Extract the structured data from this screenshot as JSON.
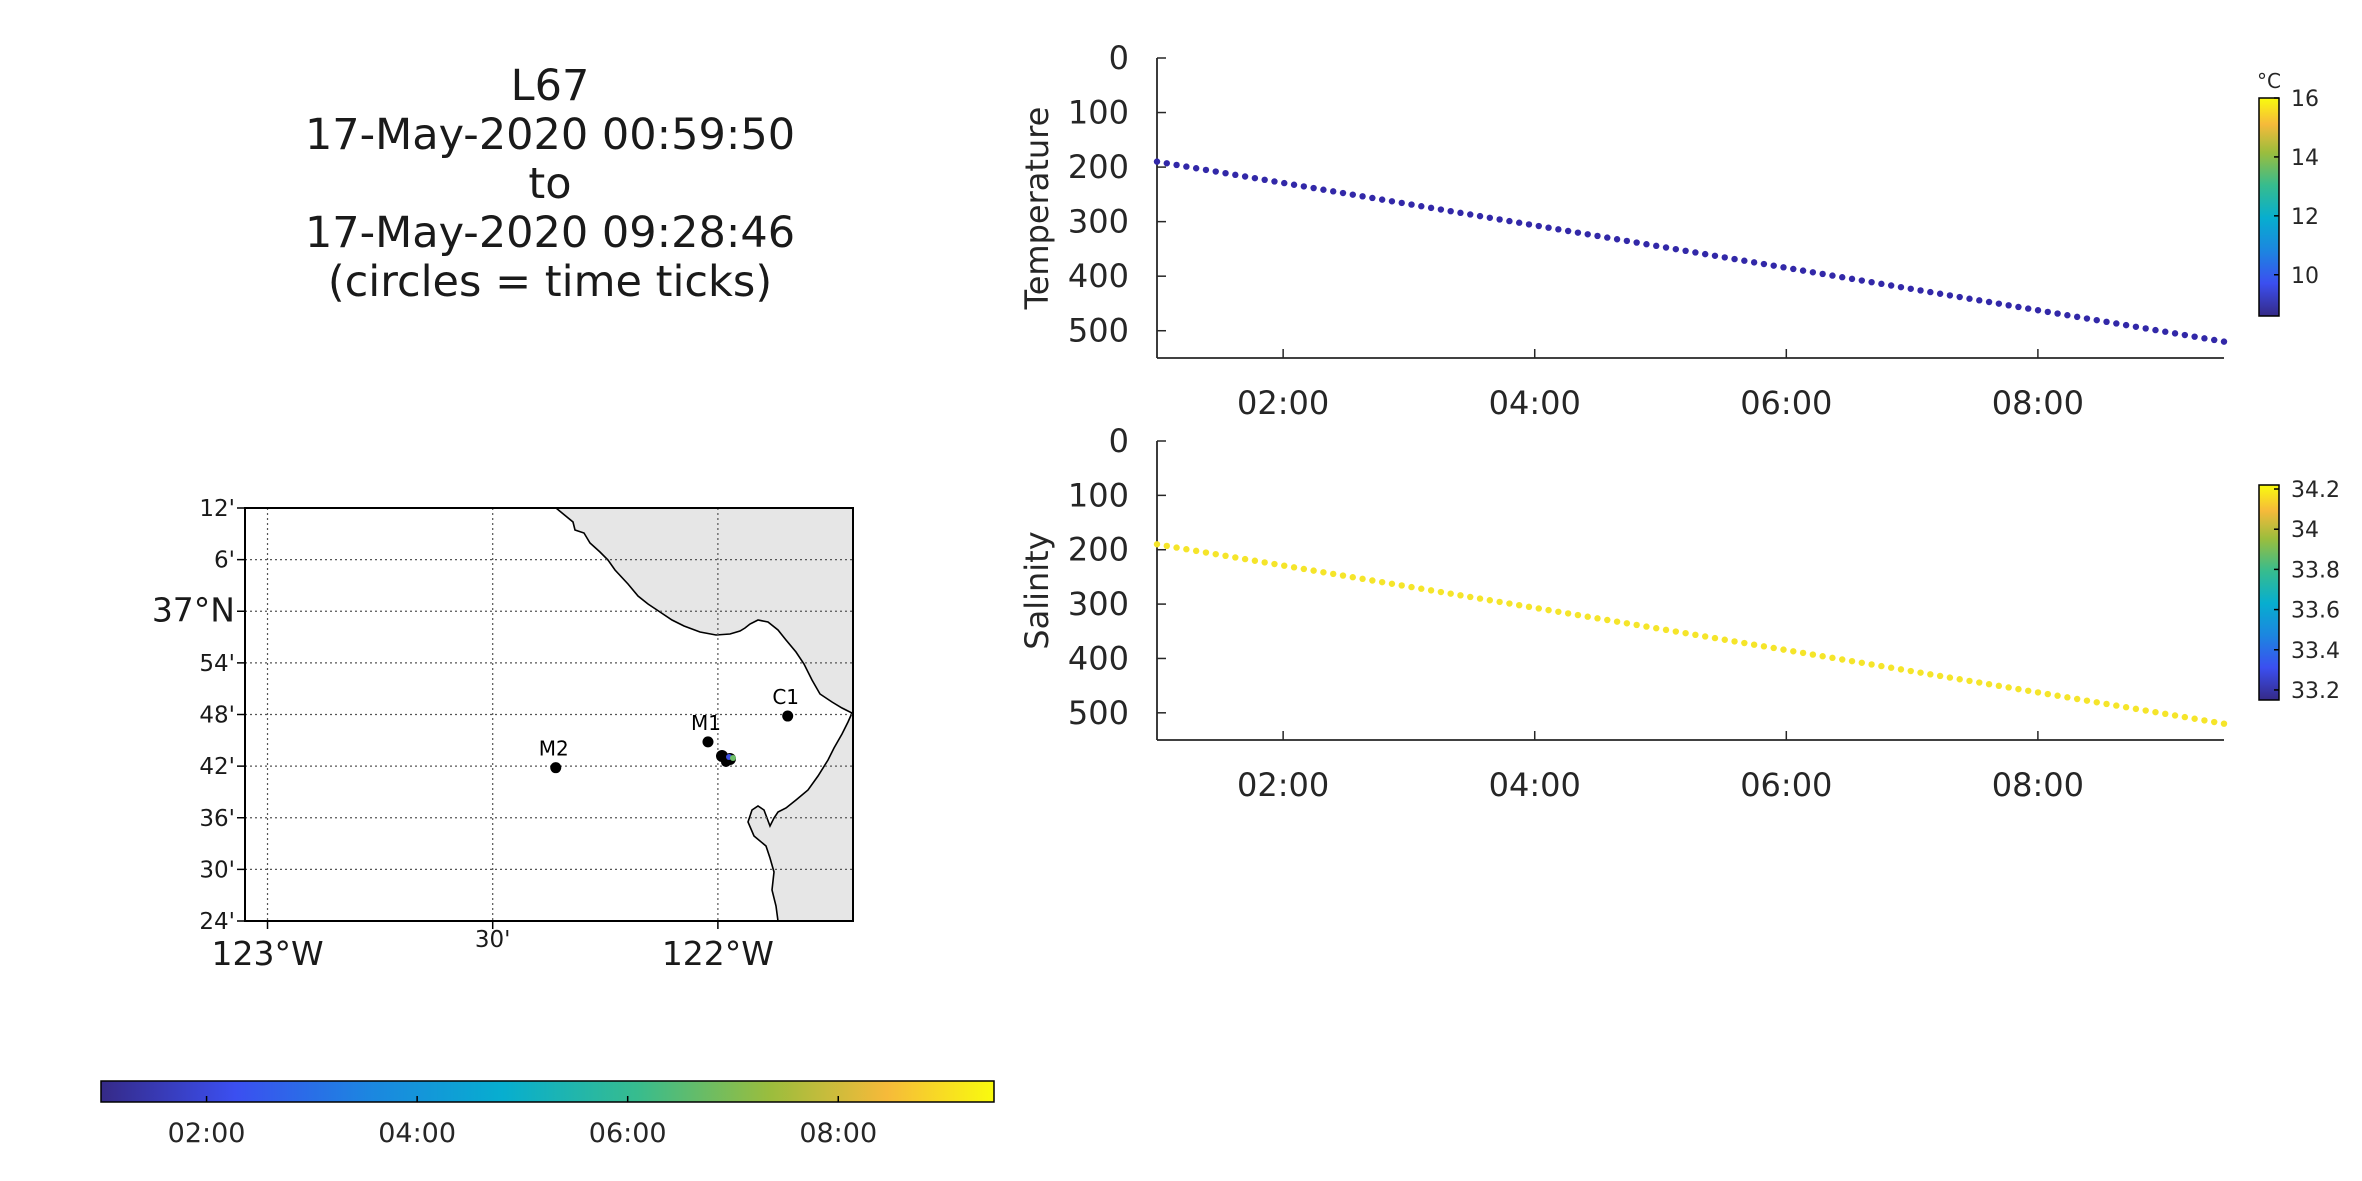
{
  "header": {
    "lines": [
      "L67",
      "17-May-2020 00:59:50",
      "to",
      "17-May-2020 09:28:46",
      "(circles = time ticks)"
    ]
  },
  "map": {
    "lat_ticks": [
      "12'",
      "6'",
      "37°N",
      "54'",
      "48'",
      "42'",
      "36'",
      "30'",
      "24'"
    ],
    "lon_ticks": [
      "123°W",
      "30'",
      "122°W"
    ],
    "stations": [
      {
        "name": "M2",
        "lon": -122.36,
        "lat": 36.697
      },
      {
        "name": "M1",
        "lon": -122.022,
        "lat": 36.747
      },
      {
        "name": "C1",
        "lon": -121.845,
        "lat": 36.797
      }
    ],
    "land_color": "#e6e6e6",
    "grid_style": "dotted"
  },
  "time_colorbar": {
    "ticks": [
      "02:00",
      "04:00",
      "06:00",
      "08:00"
    ]
  },
  "chart_data": [
    {
      "type": "scatter",
      "ylabel": "Temperature",
      "x_ticks": [
        "02:00",
        "04:00",
        "06:00",
        "08:00"
      ],
      "y_ticks": [
        "0",
        "100",
        "200",
        "300",
        "400",
        "500"
      ],
      "xlim": [
        "00:59:50",
        "09:28:46"
      ],
      "ylim": [
        0,
        550
      ],
      "y_reversed": true,
      "series": [
        {
          "start_time": "00:59:50",
          "end_time": "09:28:46",
          "start_y": 190,
          "end_y": 520,
          "n_points": 110,
          "color": "#3228a8"
        }
      ],
      "colorbar": {
        "unit": "°C",
        "ticks": [
          "16",
          "14",
          "12",
          "10"
        ],
        "range": [
          8.6,
          16
        ]
      }
    },
    {
      "type": "scatter",
      "ylabel": "Salinity",
      "x_ticks": [
        "02:00",
        "04:00",
        "06:00",
        "08:00"
      ],
      "y_ticks": [
        "0",
        "100",
        "200",
        "300",
        "400",
        "500"
      ],
      "xlim": [
        "00:59:50",
        "09:28:46"
      ],
      "ylim": [
        0,
        550
      ],
      "y_reversed": true,
      "series": [
        {
          "start_time": "00:59:50",
          "end_time": "09:28:46",
          "start_y": 190,
          "end_y": 520,
          "n_points": 110,
          "color": "#f5e52a"
        }
      ],
      "colorbar": {
        "unit": "",
        "ticks": [
          "34.2",
          "34",
          "33.8",
          "33.6",
          "33.4",
          "33.2"
        ],
        "range": [
          33.15,
          34.22
        ]
      }
    }
  ]
}
